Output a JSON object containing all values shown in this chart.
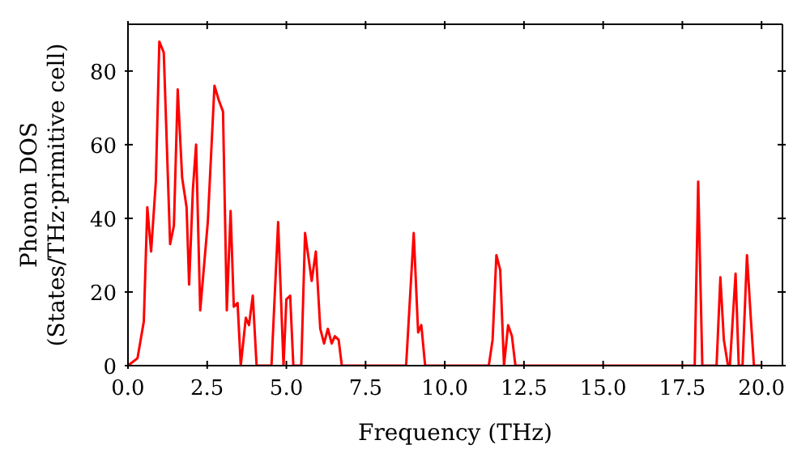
{
  "chart_data": {
    "type": "line",
    "xlabel": "Frequency (THz)",
    "ylabel": "Phonon DOS\n(States/THz·primitive cell)",
    "xlim": [
      0,
      20.66
    ],
    "xticks": [
      {
        "value": 0,
        "label": "0.0"
      },
      {
        "value": 2.5,
        "label": "2.5"
      },
      {
        "value": 5,
        "label": "5.0"
      },
      {
        "value": 7.5,
        "label": "7.5"
      },
      {
        "value": 10,
        "label": "10.0"
      },
      {
        "value": 12.5,
        "label": "12.5"
      },
      {
        "value": 15,
        "label": "15.0"
      },
      {
        "value": 17.5,
        "label": "17.5"
      },
      {
        "value": 20,
        "label": "20.0"
      }
    ],
    "ylim": [
      0,
      92.7
    ],
    "yticks": [
      0,
      20,
      40,
      60,
      80
    ],
    "grid": false,
    "legend": false,
    "marker": "none",
    "line_style": "solid",
    "x": [
      0,
      0.3,
      0.5,
      0.61,
      0.73,
      0.88,
      0.99,
      1.13,
      1.33,
      1.45,
      1.57,
      1.71,
      1.85,
      1.93,
      2.05,
      2.15,
      2.28,
      2.52,
      2.73,
      2.87,
      3.0,
      3.12,
      3.24,
      3.34,
      3.46,
      3.56,
      3.72,
      3.82,
      3.94,
      4.06,
      4.53,
      4.74,
      4.91,
      5.0,
      5.12,
      5.22,
      5.47,
      5.59,
      5.8,
      5.93,
      6.07,
      6.19,
      6.31,
      6.43,
      6.53,
      6.65,
      6.75,
      8.78,
      9.02,
      9.16,
      9.26,
      9.38,
      11.39,
      11.51,
      11.63,
      11.75,
      11.87,
      12.0,
      12.12,
      12.23,
      17.89,
      18.0,
      18.13,
      18.58,
      18.7,
      18.81,
      18.94,
      19.0,
      19.18,
      19.28,
      19.4,
      19.54,
      19.66,
      19.76,
      20.0
    ],
    "series": [
      {
        "color": "#ff0000",
        "values": [
          0,
          2,
          12,
          43,
          31,
          50,
          88,
          85,
          33,
          38,
          75,
          51,
          43,
          22,
          48,
          60,
          15,
          39,
          76,
          72,
          69,
          15,
          42,
          16,
          17,
          0,
          13,
          11,
          19,
          0,
          0,
          39,
          0,
          18,
          19,
          0,
          0,
          36,
          23,
          31,
          10,
          6,
          10,
          6,
          8,
          7,
          0,
          0,
          36,
          9,
          11,
          0,
          0,
          7,
          30,
          26,
          0,
          11,
          8,
          0,
          0,
          50,
          0,
          0,
          24,
          7,
          0,
          0,
          25,
          0,
          0,
          30,
          13,
          0,
          0
        ]
      }
    ]
  }
}
